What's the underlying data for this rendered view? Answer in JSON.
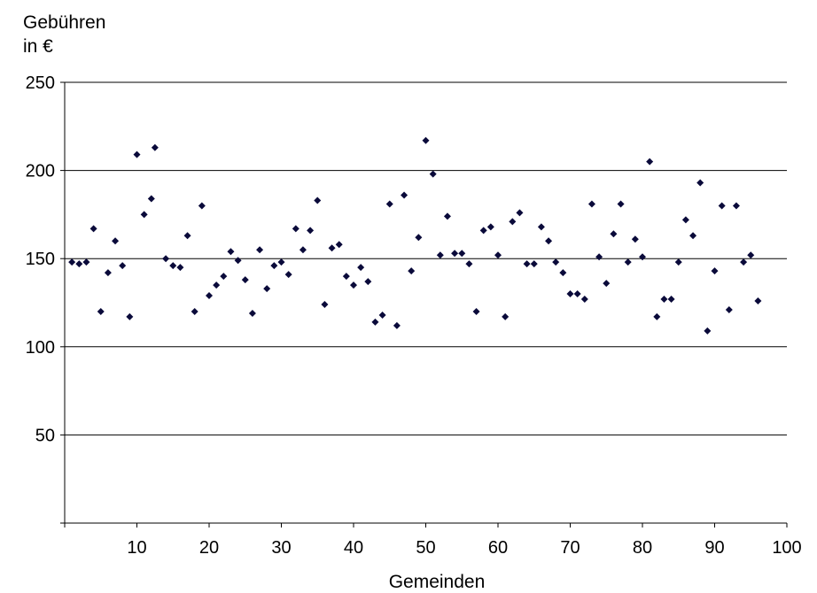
{
  "chart_data": {
    "type": "scatter",
    "ylabel": [
      "Gebühren",
      "in €"
    ],
    "xlabel": "Gemeinden",
    "xlim": [
      0,
      100
    ],
    "ylim": [
      0,
      250
    ],
    "xticks": [
      10,
      20,
      30,
      40,
      50,
      60,
      70,
      80,
      90,
      100
    ],
    "yticks": [
      50,
      100,
      150,
      200,
      250
    ],
    "grid": "horizontal",
    "marker_color": "#0a0a3a",
    "series": [
      {
        "points": [
          [
            1,
            148
          ],
          [
            2,
            147
          ],
          [
            3,
            148
          ],
          [
            4,
            167
          ],
          [
            5,
            120
          ],
          [
            6,
            142
          ],
          [
            7,
            160
          ],
          [
            8,
            146
          ],
          [
            9,
            117
          ],
          [
            10,
            209
          ],
          [
            11,
            175
          ],
          [
            12,
            184
          ],
          [
            12.5,
            213
          ],
          [
            14,
            150
          ],
          [
            15,
            146
          ],
          [
            16,
            145
          ],
          [
            17,
            163
          ],
          [
            18,
            120
          ],
          [
            19,
            180
          ],
          [
            20,
            129
          ],
          [
            21,
            135
          ],
          [
            22,
            140
          ],
          [
            23,
            154
          ],
          [
            24,
            149
          ],
          [
            25,
            138
          ],
          [
            26,
            119
          ],
          [
            27,
            155
          ],
          [
            28,
            133
          ],
          [
            29,
            146
          ],
          [
            30,
            148
          ],
          [
            31,
            141
          ],
          [
            32,
            167
          ],
          [
            33,
            155
          ],
          [
            34,
            166
          ],
          [
            35,
            183
          ],
          [
            36,
            124
          ],
          [
            37,
            156
          ],
          [
            38,
            158
          ],
          [
            39,
            140
          ],
          [
            40,
            135
          ],
          [
            41,
            145
          ],
          [
            42,
            137
          ],
          [
            43,
            114
          ],
          [
            44,
            118
          ],
          [
            45,
            181
          ],
          [
            46,
            112
          ],
          [
            47,
            186
          ],
          [
            48,
            143
          ],
          [
            49,
            162
          ],
          [
            50,
            217
          ],
          [
            51,
            198
          ],
          [
            52,
            152
          ],
          [
            53,
            174
          ],
          [
            54,
            153
          ],
          [
            55,
            153
          ],
          [
            56,
            147
          ],
          [
            57,
            120
          ],
          [
            58,
            166
          ],
          [
            59,
            168
          ],
          [
            60,
            152
          ],
          [
            61,
            117
          ],
          [
            62,
            171
          ],
          [
            63,
            176
          ],
          [
            64,
            147
          ],
          [
            65,
            147
          ],
          [
            66,
            168
          ],
          [
            67,
            160
          ],
          [
            68,
            148
          ],
          [
            69,
            142
          ],
          [
            70,
            130
          ],
          [
            71,
            130
          ],
          [
            72,
            127
          ],
          [
            73,
            181
          ],
          [
            74,
            151
          ],
          [
            75,
            136
          ],
          [
            76,
            164
          ],
          [
            77,
            181
          ],
          [
            78,
            148
          ],
          [
            79,
            161
          ],
          [
            80,
            151
          ],
          [
            81,
            205
          ],
          [
            82,
            117
          ],
          [
            83,
            127
          ],
          [
            84,
            127
          ],
          [
            85,
            148
          ],
          [
            86,
            172
          ],
          [
            87,
            163
          ],
          [
            88,
            193
          ],
          [
            89,
            109
          ],
          [
            90,
            143
          ],
          [
            91,
            180
          ],
          [
            92,
            121
          ],
          [
            93,
            180
          ],
          [
            94,
            148
          ],
          [
            95,
            152
          ],
          [
            96,
            126
          ]
        ]
      }
    ]
  }
}
